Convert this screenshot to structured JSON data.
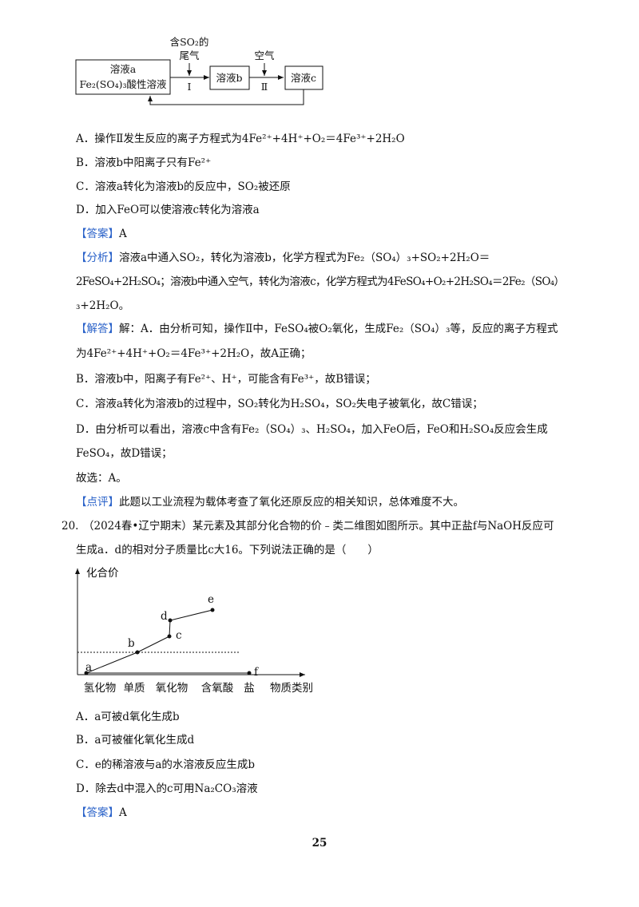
{
  "flow_diagram": {
    "box1": [
      "溶液a",
      "Fe₂(SO₄)₃酸性溶液"
    ],
    "input1": [
      "含SO₂的",
      "尾气"
    ],
    "step1": "Ⅰ",
    "box2": "溶液b",
    "input2": "空气",
    "step2": "Ⅱ",
    "box3": "溶液c"
  },
  "q19": {
    "options": [
      "A．操作Ⅱ发生反应的离子方程式为4Fe²⁺+4H⁺+O₂＝4Fe³⁺+2H₂O",
      "B．溶液b中阳离子只有Fe²⁺",
      "C．溶液a转化为溶液b的反应中，SO₂被还原",
      "D．加入FeO可以使溶液c转化为溶液a"
    ],
    "answer": {
      "tag": "【答案】",
      "text": "A"
    },
    "analysis": {
      "tag": "【分析】",
      "lines": [
        "溶液a中通入SO₂，转化为溶液b，化学方程式为Fe₂（SO₄）₃+SO₂+2H₂O＝",
        "2FeSO₄+2H₂SO₄；溶液b中通入空气，转化为溶液c，化学方程式为4FeSO₄+O₂+2H₂SO₄＝2Fe₂（SO₄）",
        "₃+2H₂O。"
      ]
    },
    "solution": {
      "tag": "【解答】",
      "lines": [
        "解：A．由分析可知，操作Ⅱ中，FeSO₄被O₂氧化，生成Fe₂（SO₄）₃等，反应的离子方程式",
        "为4Fe²⁺+4H⁺+O₂＝4Fe³⁺+2H₂O，故A正确；",
        "B．溶液b中，阳离子有Fe²⁺、H⁺，可能含有Fe³⁺，故B错误；",
        "C．溶液a转化为溶液b的过程中，SO₂转化为H₂SO₄，SO₂失电子被氧化，故C错误；",
        "D．由分析可以看出，溶液c中含有Fe₂（SO₄）₃、H₂SO₄，加入FeO后，FeO和H₂SO₄反应会生成",
        "FeSO₄，故D错误；",
        "故选：A。"
      ]
    },
    "comment": {
      "tag": "【点评】",
      "text": "此题以工业流程为载体考查了氧化还原反应的相关知识，总体难度不大。"
    }
  },
  "q20": {
    "number": "20.",
    "stem": [
      "（2024春•辽宁期末）某元素及其部分化合物的价﹣类二维图如图所示。其中正盐f与NaOH反应可",
      "生成a．d的相对分子质量比c大16。下列说法正确的是（　　）"
    ],
    "graph": {
      "y_label": "化合价",
      "x_label": "物质类别",
      "categories": [
        "氢化物",
        "单质",
        "氧化物",
        "含氧酸",
        "盐"
      ],
      "points": [
        "a",
        "b",
        "c",
        "d",
        "e",
        "f"
      ]
    },
    "options": [
      "A．a可被d氧化生成b",
      "B．a可被催化氧化生成d",
      "C．e的稀溶液与a的水溶液反应生成b",
      "D．除去d中混入的c可用Na₂CO₃溶液"
    ],
    "answer": {
      "tag": "【答案】",
      "text": "A"
    }
  },
  "page_number": "25"
}
